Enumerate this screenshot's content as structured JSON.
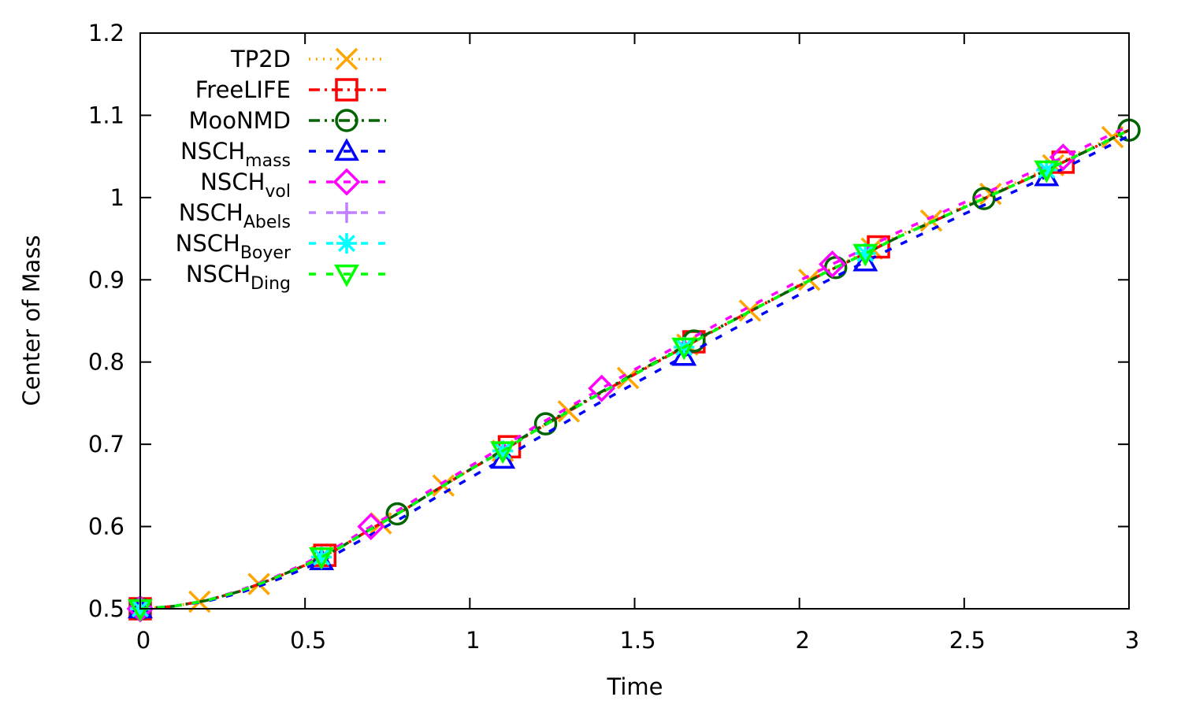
{
  "chart_data": {
    "type": "line",
    "title": "",
    "xlabel": "Time",
    "ylabel": "Center of Mass",
    "xlim": [
      0,
      3
    ],
    "ylim": [
      0.5,
      1.2
    ],
    "xticks": [
      "0",
      "0.5",
      "1",
      "1.5",
      "2",
      "2.5",
      "3"
    ],
    "yticks": [
      "0.5",
      "0.6",
      "0.7",
      "0.8",
      "0.9",
      "1",
      "1.1",
      "1.2"
    ],
    "grid": false,
    "legend_position": "top-left",
    "x": [
      0,
      0.1,
      0.2,
      0.3,
      0.4,
      0.5,
      0.6,
      0.7,
      0.8,
      0.9,
      1.0,
      1.1,
      1.2,
      1.3,
      1.4,
      1.5,
      1.6,
      1.7,
      1.8,
      1.9,
      2.0,
      2.1,
      2.2,
      2.3,
      2.4,
      2.5,
      2.6,
      2.7,
      2.8,
      2.9,
      3.0
    ],
    "series": [
      {
        "name": "TP2D",
        "sub": "",
        "color": "#ffa500",
        "dash": "dotted",
        "marker": "cross",
        "values": [
          0.5,
          0.503,
          0.51,
          0.521,
          0.536,
          0.553,
          0.573,
          0.597,
          0.62,
          0.645,
          0.669,
          0.692,
          0.717,
          0.74,
          0.763,
          0.785,
          0.808,
          0.83,
          0.852,
          0.873,
          0.894,
          0.914,
          0.934,
          0.954,
          0.972,
          0.99,
          1.008,
          1.026,
          1.045,
          1.064,
          1.083
        ],
        "marker_x": [
          0,
          0.18,
          0.36,
          0.55,
          0.73,
          0.92,
          1.1,
          1.3,
          1.48,
          1.66,
          1.85,
          2.03,
          2.22,
          2.4,
          2.58,
          2.77,
          2.95
        ]
      },
      {
        "name": "FreeLIFE",
        "sub": "",
        "color": "#ff0000",
        "dash": "dash-dot",
        "marker": "square",
        "values": [
          0.5,
          0.503,
          0.51,
          0.521,
          0.536,
          0.553,
          0.573,
          0.597,
          0.62,
          0.645,
          0.669,
          0.692,
          0.717,
          0.74,
          0.763,
          0.785,
          0.807,
          0.829,
          0.851,
          0.872,
          0.893,
          0.913,
          0.932,
          0.952,
          0.97,
          0.988,
          1.006,
          1.024,
          1.043,
          1.062,
          1.082
        ],
        "marker_x": [
          0,
          0.56,
          1.12,
          1.68,
          2.24,
          2.8
        ]
      },
      {
        "name": "MooNMD",
        "sub": "",
        "color": "#006400",
        "dash": "dash-dot-dot",
        "marker": "circle",
        "values": [
          0.5,
          0.503,
          0.51,
          0.521,
          0.536,
          0.553,
          0.573,
          0.597,
          0.62,
          0.645,
          0.669,
          0.693,
          0.718,
          0.741,
          0.764,
          0.786,
          0.808,
          0.83,
          0.851,
          0.872,
          0.893,
          0.913,
          0.932,
          0.952,
          0.97,
          0.988,
          1.006,
          1.024,
          1.043,
          1.062,
          1.082
        ],
        "marker_x": [
          0,
          0.78,
          1.23,
          1.68,
          2.11,
          2.56,
          3.0
        ]
      },
      {
        "name": "NSCH",
        "sub": "mass",
        "color": "#0000ff",
        "dash": "dashed",
        "marker": "triangle-up",
        "values": [
          0.5,
          0.503,
          0.509,
          0.519,
          0.533,
          0.549,
          0.568,
          0.59,
          0.612,
          0.636,
          0.659,
          0.682,
          0.706,
          0.729,
          0.752,
          0.774,
          0.796,
          0.818,
          0.84,
          0.861,
          0.882,
          0.902,
          0.922,
          0.942,
          0.961,
          0.98,
          0.998,
          1.016,
          1.035,
          1.055,
          1.075
        ],
        "marker_x": [
          0,
          0.55,
          1.1,
          1.65,
          2.2,
          2.75
        ]
      },
      {
        "name": "NSCH",
        "sub": "vol",
        "color": "#ff00ff",
        "dash": "dashed",
        "marker": "diamond",
        "values": [
          0.5,
          0.503,
          0.51,
          0.522,
          0.537,
          0.555,
          0.576,
          0.6,
          0.624,
          0.649,
          0.673,
          0.697,
          0.722,
          0.745,
          0.768,
          0.791,
          0.813,
          0.835,
          0.857,
          0.878,
          0.899,
          0.919,
          0.938,
          0.958,
          0.976,
          0.994,
          1.012,
          1.03,
          1.049,
          1.068,
          1.087
        ],
        "marker_x": [
          0,
          0.7,
          1.4,
          2.1,
          2.8
        ]
      },
      {
        "name": "NSCH",
        "sub": "Abels",
        "color": "#c080ff",
        "dash": "dashed",
        "marker": "plus",
        "values": [
          0.5,
          0.503,
          0.51,
          0.521,
          0.536,
          0.553,
          0.573,
          0.597,
          0.62,
          0.645,
          0.669,
          0.692,
          0.717,
          0.74,
          0.763,
          0.785,
          0.807,
          0.829,
          0.851,
          0.872,
          0.893,
          0.913,
          0.932,
          0.952,
          0.97,
          0.988,
          1.006,
          1.024,
          1.043,
          1.062,
          1.082
        ],
        "marker_x": [
          0,
          0.55,
          1.1,
          1.65,
          2.2,
          2.75
        ]
      },
      {
        "name": "NSCH",
        "sub": "Boyer",
        "color": "#00ffff",
        "dash": "dashed",
        "marker": "star",
        "values": [
          0.5,
          0.503,
          0.51,
          0.521,
          0.536,
          0.553,
          0.573,
          0.597,
          0.62,
          0.645,
          0.669,
          0.692,
          0.717,
          0.74,
          0.763,
          0.785,
          0.807,
          0.829,
          0.851,
          0.872,
          0.893,
          0.913,
          0.932,
          0.952,
          0.97,
          0.988,
          1.006,
          1.024,
          1.043,
          1.062,
          1.082
        ],
        "marker_x": [
          0,
          0.55,
          1.1,
          1.65,
          2.2,
          2.75
        ]
      },
      {
        "name": "NSCH",
        "sub": "Ding",
        "color": "#00ff00",
        "dash": "dashed",
        "marker": "triangle-down",
        "values": [
          0.5,
          0.503,
          0.51,
          0.521,
          0.536,
          0.553,
          0.573,
          0.597,
          0.62,
          0.645,
          0.669,
          0.692,
          0.717,
          0.74,
          0.763,
          0.785,
          0.807,
          0.829,
          0.851,
          0.872,
          0.893,
          0.913,
          0.932,
          0.952,
          0.97,
          0.988,
          1.006,
          1.024,
          1.043,
          1.062,
          1.082
        ],
        "marker_x": [
          0,
          0.55,
          1.1,
          1.65,
          2.2,
          2.75
        ]
      }
    ]
  }
}
